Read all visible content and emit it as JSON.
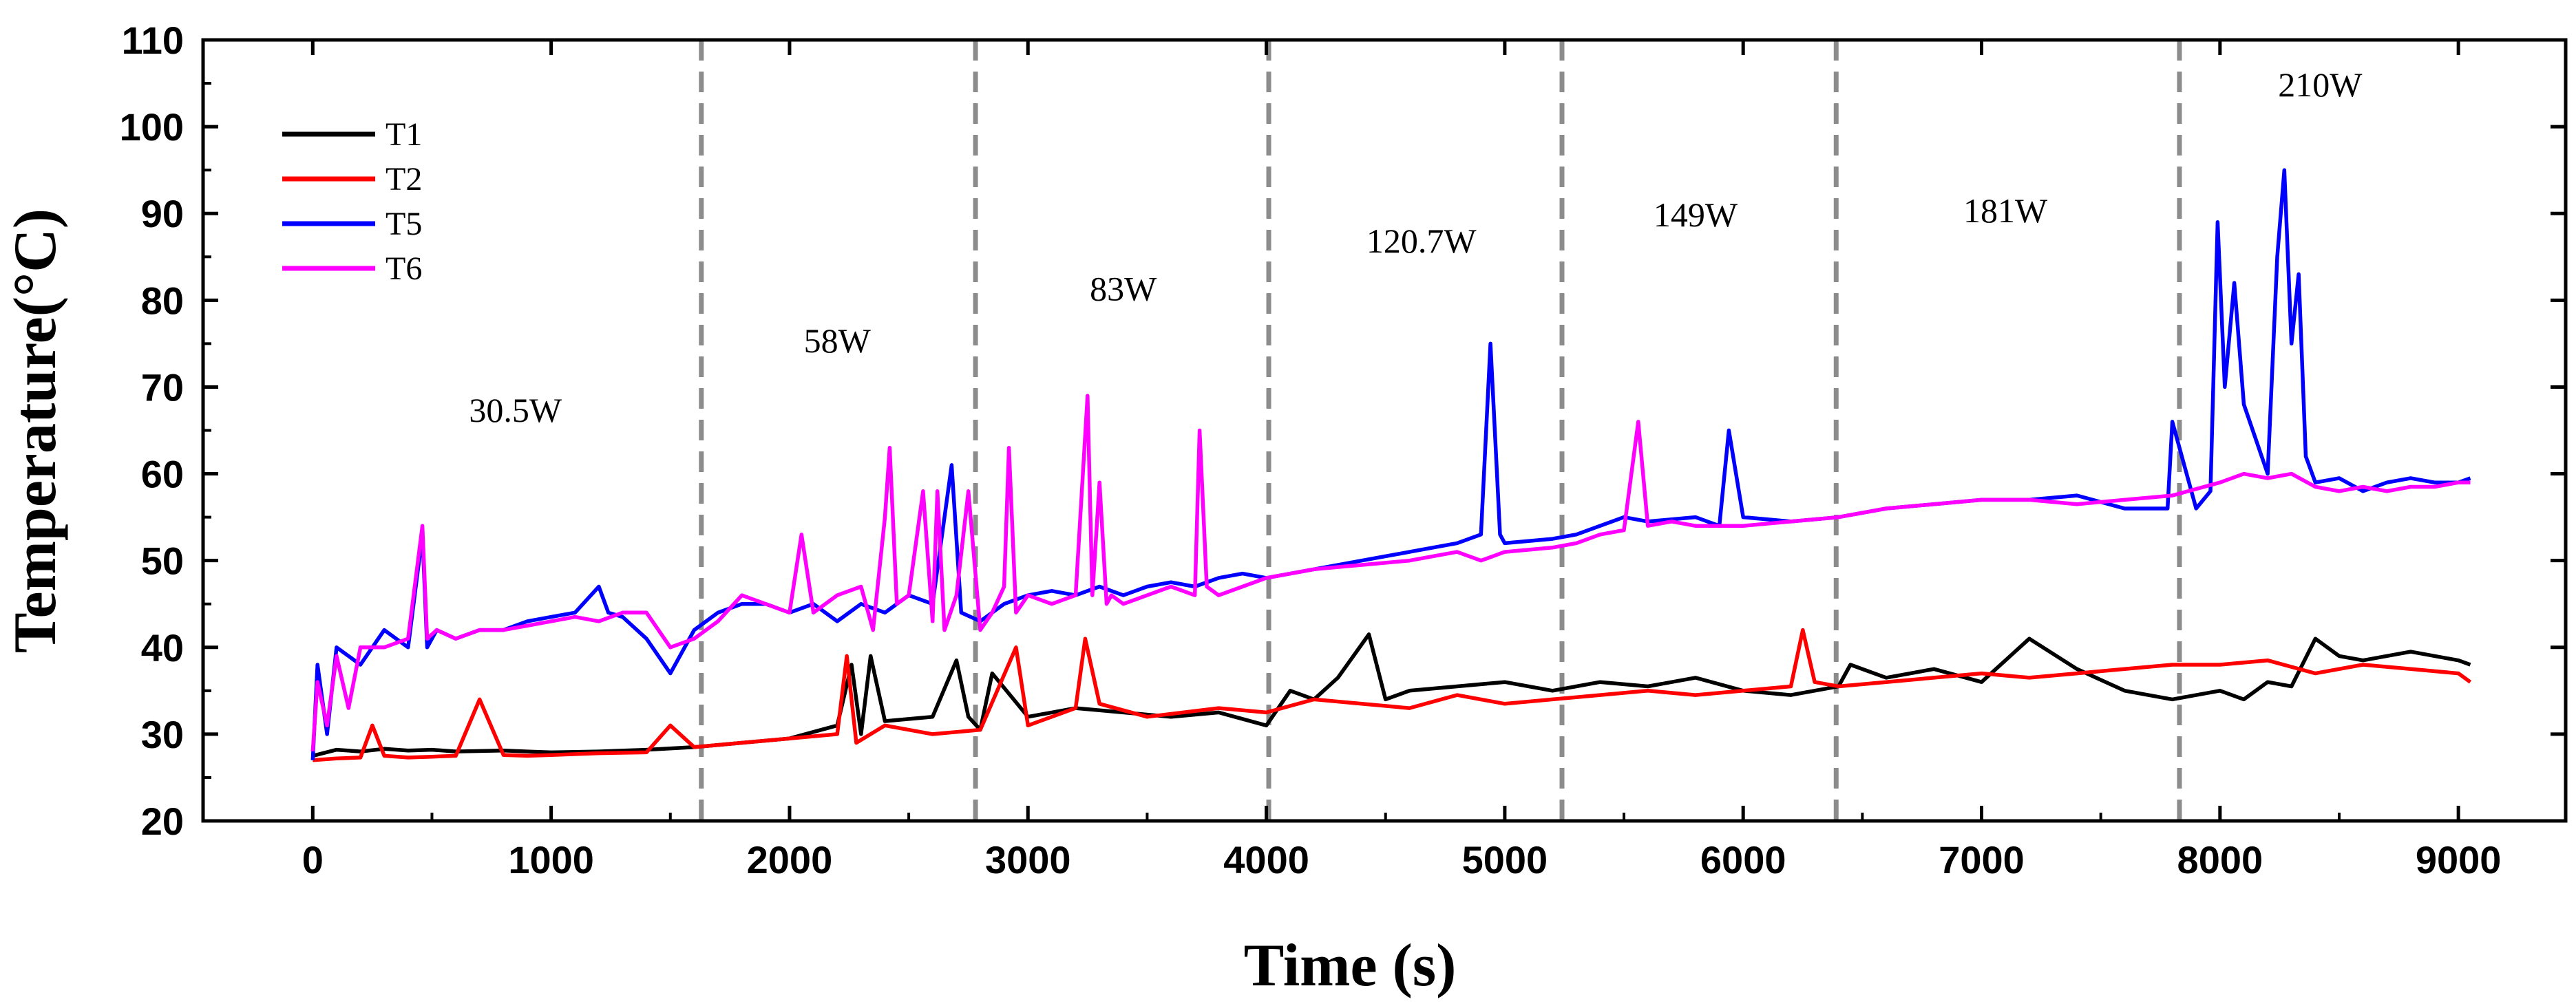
{
  "chart_data": {
    "type": "line",
    "title": "",
    "xlabel": "Time (s)",
    "ylabel": "Temperature(°C)",
    "xlim": [
      -460,
      9450
    ],
    "ylim": [
      20,
      110
    ],
    "xticks": [
      0,
      1000,
      2000,
      3000,
      4000,
      5000,
      6000,
      7000,
      8000,
      9000
    ],
    "yticks": [
      20,
      30,
      40,
      50,
      60,
      70,
      80,
      90,
      100,
      110
    ],
    "xtick_labels": [
      "0",
      "1000",
      "2000",
      "3000",
      "4000",
      "5000",
      "6000",
      "7000",
      "8000",
      "9000"
    ],
    "ytick_labels": [
      "20",
      "30",
      "40",
      "50",
      "60",
      "70",
      "80",
      "90",
      "100",
      "110"
    ],
    "grid": false,
    "legend_position": "top-left",
    "dividers_x": [
      1630,
      2780,
      4010,
      5240,
      6390,
      7830
    ],
    "power_labels": [
      {
        "text": "30.5W",
        "x": 850,
        "y": 66
      },
      {
        "text": "58W",
        "x": 2200,
        "y": 74
      },
      {
        "text": "83W",
        "x": 3400,
        "y": 80
      },
      {
        "text": "120.7W",
        "x": 4650,
        "y": 85.5
      },
      {
        "text": "149W",
        "x": 5800,
        "y": 88.5
      },
      {
        "text": "181W",
        "x": 7100,
        "y": 89
      },
      {
        "text": "210W",
        "x": 8420,
        "y": 103.5
      }
    ],
    "series": [
      {
        "name": "T1",
        "color": "#000000",
        "x": [
          0,
          100,
          200,
          300,
          400,
          500,
          600,
          800,
          1000,
          1200,
          1400,
          1600,
          1800,
          2000,
          2200,
          2260,
          2300,
          2340,
          2400,
          2600,
          2700,
          2750,
          2800,
          2850,
          3000,
          3200,
          3400,
          3600,
          3800,
          4000,
          4100,
          4200,
          4300,
          4430,
          4500,
          4600,
          4800,
          5000,
          5200,
          5400,
          5600,
          5800,
          6000,
          6200,
          6400,
          6450,
          6600,
          6800,
          7000,
          7200,
          7400,
          7600,
          7800,
          8000,
          8100,
          8200,
          8300,
          8400,
          8500,
          8600,
          8800,
          9000,
          9050
        ],
        "values": [
          27.5,
          28.2,
          28.0,
          28.3,
          28.1,
          28.2,
          28.0,
          28.1,
          27.9,
          28.0,
          28.2,
          28.5,
          29.0,
          29.5,
          31.0,
          38.0,
          30.0,
          39.0,
          31.5,
          32.0,
          38.5,
          32.0,
          30.5,
          37.0,
          32.0,
          33.0,
          32.5,
          32.0,
          32.5,
          31.0,
          35.0,
          34.0,
          36.5,
          41.5,
          34.0,
          35.0,
          35.5,
          36.0,
          35.0,
          36.0,
          35.5,
          36.5,
          35.0,
          34.5,
          35.5,
          38.0,
          36.5,
          37.5,
          36.0,
          41.0,
          37.5,
          35.0,
          34.0,
          35.0,
          34.0,
          36.0,
          35.5,
          41.0,
          39.0,
          38.5,
          39.5,
          38.5,
          38.0
        ]
      },
      {
        "name": "T2",
        "color": "#ff0000",
        "x": [
          0,
          100,
          200,
          250,
          300,
          400,
          500,
          600,
          700,
          800,
          900,
          1000,
          1200,
          1400,
          1500,
          1600,
          1800,
          2000,
          2200,
          2240,
          2280,
          2400,
          2600,
          2800,
          2950,
          3000,
          3200,
          3240,
          3300,
          3500,
          3800,
          4000,
          4200,
          4400,
          4600,
          4800,
          5000,
          5200,
          5400,
          5600,
          5800,
          6000,
          6200,
          6250,
          6300,
          6400,
          6600,
          6800,
          7000,
          7200,
          7400,
          7600,
          7800,
          8000,
          8200,
          8400,
          8600,
          8800,
          9000,
          9050
        ],
        "values": [
          27.0,
          27.2,
          27.3,
          31.0,
          27.5,
          27.3,
          27.4,
          27.5,
          34.0,
          27.6,
          27.5,
          27.6,
          27.8,
          27.9,
          31.0,
          28.5,
          29.0,
          29.5,
          30.0,
          39.0,
          29.0,
          31.0,
          30.0,
          30.5,
          40.0,
          31.0,
          33.0,
          41.0,
          33.5,
          32.0,
          33.0,
          32.5,
          34.0,
          33.5,
          33.0,
          34.5,
          33.5,
          34.0,
          34.5,
          35.0,
          34.5,
          35.0,
          35.5,
          42.0,
          36.0,
          35.5,
          36.0,
          36.5,
          37.0,
          36.5,
          37.0,
          37.5,
          38.0,
          38.0,
          38.5,
          37.0,
          38.0,
          37.5,
          37.0,
          36.0
        ]
      },
      {
        "name": "T5",
        "color": "#0000ff",
        "x": [
          0,
          20,
          60,
          100,
          200,
          300,
          400,
          460,
          480,
          520,
          600,
          700,
          800,
          900,
          1000,
          1100,
          1200,
          1240,
          1300,
          1400,
          1500,
          1600,
          1700,
          1800,
          1900,
          2000,
          2100,
          2200,
          2300,
          2400,
          2500,
          2600,
          2680,
          2720,
          2800,
          2900,
          3000,
          3100,
          3200,
          3300,
          3400,
          3500,
          3600,
          3700,
          3800,
          3900,
          4000,
          4200,
          4400,
          4600,
          4800,
          4900,
          4940,
          4980,
          5000,
          5200,
          5300,
          5400,
          5500,
          5600,
          5800,
          5900,
          5940,
          6000,
          6200,
          6400,
          6600,
          6800,
          7000,
          7200,
          7400,
          7600,
          7780,
          7800,
          7900,
          7960,
          7990,
          8020,
          8060,
          8100,
          8150,
          8200,
          8240,
          8270,
          8300,
          8330,
          8360,
          8400,
          8500,
          8600,
          8700,
          8800,
          8900,
          9000,
          9050
        ],
        "values": [
          27.0,
          38.0,
          30.0,
          40.0,
          38.0,
          42.0,
          40.0,
          53.0,
          40.0,
          42.0,
          41.0,
          42.0,
          42.0,
          43.0,
          43.5,
          44.0,
          47.0,
          44.0,
          43.5,
          41.0,
          37.0,
          42.0,
          44.0,
          45.0,
          45.0,
          44.0,
          45.0,
          43.0,
          45.0,
          44.0,
          46.0,
          45.0,
          61.0,
          44.0,
          43.0,
          45.0,
          46.0,
          46.5,
          46.0,
          47.0,
          46.0,
          47.0,
          47.5,
          47.0,
          48.0,
          48.5,
          48.0,
          49.0,
          50.0,
          51.0,
          52.0,
          53.0,
          75.0,
          53.0,
          52.0,
          52.5,
          53.0,
          54.0,
          55.0,
          54.5,
          55.0,
          54.0,
          65.0,
          55.0,
          54.5,
          55.0,
          56.0,
          56.5,
          57.0,
          57.0,
          57.5,
          56.0,
          56.0,
          66.0,
          56.0,
          58.0,
          89.0,
          70.0,
          82.0,
          68.0,
          64.0,
          60.0,
          85.0,
          95.0,
          75.0,
          83.0,
          62.0,
          59.0,
          59.5,
          58.0,
          59.0,
          59.5,
          59.0,
          59.0,
          59.5
        ]
      },
      {
        "name": "T6",
        "color": "#ff00ff",
        "x": [
          0,
          20,
          60,
          100,
          150,
          200,
          300,
          400,
          460,
          480,
          520,
          600,
          700,
          800,
          900,
          1000,
          1100,
          1200,
          1300,
          1400,
          1500,
          1600,
          1700,
          1800,
          1900,
          2000,
          2050,
          2100,
          2200,
          2300,
          2350,
          2400,
          2420,
          2450,
          2500,
          2560,
          2600,
          2620,
          2650,
          2700,
          2750,
          2800,
          2850,
          2900,
          2920,
          2950,
          3000,
          3100,
          3200,
          3250,
          3270,
          3300,
          3330,
          3350,
          3400,
          3500,
          3600,
          3700,
          3720,
          3750,
          3800,
          3900,
          4000,
          4200,
          4400,
          4600,
          4800,
          4900,
          5000,
          5200,
          5300,
          5400,
          5500,
          5560,
          5600,
          5700,
          5800,
          6000,
          6200,
          6400,
          6600,
          6800,
          7000,
          7200,
          7400,
          7600,
          7800,
          8000,
          8100,
          8200,
          8300,
          8400,
          8500,
          8600,
          8700,
          8800,
          8900,
          9000,
          9050
        ],
        "values": [
          28.0,
          36.0,
          31.0,
          39.0,
          33.0,
          40.0,
          40.0,
          41.0,
          54.0,
          41.0,
          42.0,
          41.0,
          42.0,
          42.0,
          42.5,
          43.0,
          43.5,
          43.0,
          44.0,
          44.0,
          40.0,
          41.0,
          43.0,
          46.0,
          45.0,
          44.0,
          53.0,
          44.0,
          46.0,
          47.0,
          42.0,
          55.0,
          63.0,
          45.0,
          46.0,
          58.0,
          43.0,
          58.0,
          42.0,
          46.0,
          58.0,
          42.0,
          44.0,
          47.0,
          63.0,
          44.0,
          46.0,
          45.0,
          46.0,
          69.0,
          46.0,
          59.0,
          45.0,
          46.0,
          45.0,
          46.0,
          47.0,
          46.0,
          65.0,
          47.0,
          46.0,
          47.0,
          48.0,
          49.0,
          49.5,
          50.0,
          51.0,
          50.0,
          51.0,
          51.5,
          52.0,
          53.0,
          53.5,
          66.0,
          54.0,
          54.5,
          54.0,
          54.0,
          54.5,
          55.0,
          56.0,
          56.5,
          57.0,
          57.0,
          56.5,
          57.0,
          57.5,
          59.0,
          60.0,
          59.5,
          60.0,
          58.5,
          58.0,
          58.5,
          58.0,
          58.5,
          58.5,
          59.0,
          59.0
        ]
      }
    ]
  }
}
